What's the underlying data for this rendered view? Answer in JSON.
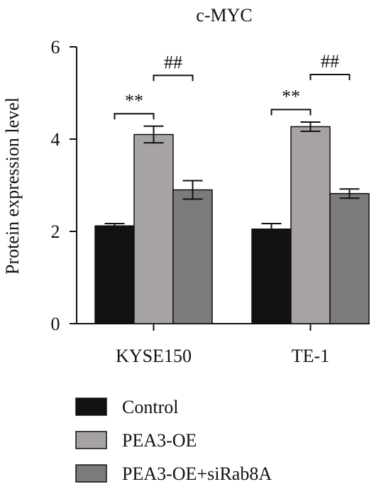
{
  "chart_data": {
    "type": "bar",
    "title": "c-MYC",
    "ylabel": "Protein expression level",
    "xlabel": "",
    "ylim": [
      0,
      6
    ],
    "yticks": [
      0,
      2,
      4,
      6
    ],
    "categories": [
      "KYSE150",
      "TE-1"
    ],
    "series": [
      {
        "name": "Control",
        "color": "#111111",
        "values": [
          2.12,
          2.05
        ],
        "errors": [
          0.05,
          0.12
        ]
      },
      {
        "name": "PEA3-OE",
        "color": "#a7a3a3",
        "values": [
          4.1,
          4.27
        ],
        "errors": [
          0.18,
          0.1
        ]
      },
      {
        "name": "PEA3-OE+siRab8A",
        "color": "#7b7b79",
        "values": [
          2.9,
          2.82
        ],
        "errors": [
          0.2,
          0.1
        ]
      }
    ],
    "annotations": [
      {
        "label": "**",
        "category": 0,
        "from_series": 0,
        "to_series": 1,
        "level": 4.55
      },
      {
        "label": "##",
        "category": 0,
        "from_series": 1,
        "to_series": 2,
        "level": 5.38
      },
      {
        "label": "**",
        "category": 1,
        "from_series": 0,
        "to_series": 1,
        "level": 4.64
      },
      {
        "label": "##",
        "category": 1,
        "from_series": 1,
        "to_series": 2,
        "level": 5.4
      }
    ],
    "legend_position": "bottom"
  }
}
